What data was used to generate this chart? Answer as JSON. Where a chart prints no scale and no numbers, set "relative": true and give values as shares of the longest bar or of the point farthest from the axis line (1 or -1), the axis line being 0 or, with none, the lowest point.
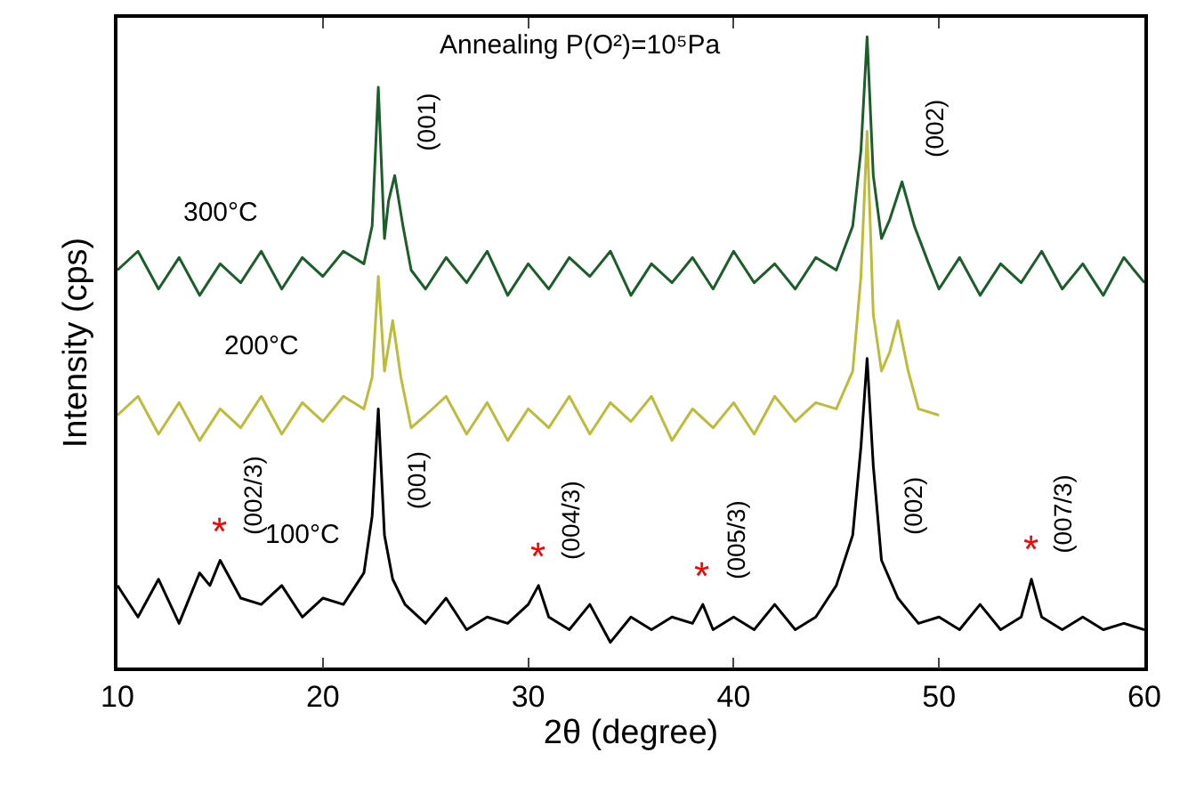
{
  "chart_data": {
    "type": "line",
    "relative": true,
    "title": "Annealing P(O²)=10⁵Pa",
    "xlabel": "2θ (degree)",
    "ylabel": "Intensity (cps)",
    "xlim": [
      10,
      60
    ],
    "xticks": [
      10,
      20,
      30,
      40,
      50,
      60
    ],
    "series": [
      {
        "name": "300°C",
        "color": "#1b5e2a",
        "x": [
          10,
          11,
          12,
          13,
          14,
          15,
          16,
          17,
          18,
          19,
          20,
          21,
          22,
          22.4,
          22.7,
          23.0,
          23.2,
          23.5,
          23.9,
          24.3,
          25,
          26,
          27,
          28,
          29,
          30,
          31,
          32,
          33,
          34,
          35,
          36,
          37,
          38,
          39,
          40,
          41,
          42,
          43,
          44,
          45,
          45.8,
          46.2,
          46.5,
          46.8,
          47.2,
          47.6,
          48.2,
          48.8,
          49.5,
          50,
          51,
          52,
          53,
          54,
          55,
          56,
          57,
          58,
          59,
          60
        ],
        "values": [
          0.63,
          0.66,
          0.6,
          0.65,
          0.59,
          0.64,
          0.61,
          0.66,
          0.6,
          0.65,
          0.62,
          0.66,
          0.64,
          0.7,
          0.92,
          0.68,
          0.74,
          0.78,
          0.7,
          0.63,
          0.6,
          0.65,
          0.61,
          0.66,
          0.59,
          0.64,
          0.6,
          0.65,
          0.62,
          0.66,
          0.59,
          0.64,
          0.61,
          0.65,
          0.6,
          0.66,
          0.61,
          0.64,
          0.6,
          0.65,
          0.63,
          0.7,
          0.82,
          1.0,
          0.78,
          0.68,
          0.71,
          0.77,
          0.7,
          0.64,
          0.6,
          0.65,
          0.59,
          0.64,
          0.61,
          0.66,
          0.6,
          0.64,
          0.59,
          0.65,
          0.61
        ]
      },
      {
        "name": "200°C",
        "color": "#bcbc3a",
        "x": [
          10,
          11,
          12,
          13,
          14,
          15,
          16,
          17,
          18,
          19,
          20,
          21,
          22,
          22.4,
          22.7,
          23.0,
          23.4,
          23.8,
          24.3,
          25,
          26,
          27,
          28,
          29,
          30,
          31,
          32,
          33,
          34,
          35,
          36,
          37,
          38,
          39,
          40,
          41,
          42,
          43,
          44,
          45,
          45.8,
          46.2,
          46.5,
          46.8,
          47.2,
          47.6,
          48.0,
          48.5,
          49,
          50
        ],
        "values": [
          0.4,
          0.43,
          0.37,
          0.42,
          0.36,
          0.41,
          0.38,
          0.43,
          0.37,
          0.42,
          0.39,
          0.43,
          0.41,
          0.46,
          0.62,
          0.47,
          0.55,
          0.46,
          0.38,
          0.4,
          0.43,
          0.37,
          0.42,
          0.36,
          0.41,
          0.38,
          0.43,
          0.37,
          0.42,
          0.39,
          0.43,
          0.36,
          0.41,
          0.38,
          0.42,
          0.37,
          0.43,
          0.39,
          0.42,
          0.41,
          0.47,
          0.62,
          0.85,
          0.56,
          0.47,
          0.5,
          0.55,
          0.47,
          0.41,
          0.4
        ]
      },
      {
        "name": "100°C",
        "color": "#000000",
        "x": [
          10,
          11,
          12,
          13,
          14,
          14.5,
          15,
          15.5,
          16,
          17,
          18,
          19,
          20,
          21,
          22,
          22.4,
          22.7,
          23,
          23.4,
          24,
          25,
          26,
          27,
          28,
          29,
          30,
          30.5,
          31,
          32,
          33,
          34,
          35,
          36,
          37,
          38,
          38.5,
          39,
          40,
          41,
          42,
          43,
          44,
          45,
          45.8,
          46.2,
          46.5,
          46.8,
          47.2,
          48,
          49,
          50,
          51,
          52,
          53,
          54,
          54.5,
          55,
          56,
          57,
          58,
          59,
          60
        ],
        "values": [
          0.13,
          0.08,
          0.14,
          0.07,
          0.15,
          0.13,
          0.17,
          0.14,
          0.11,
          0.1,
          0.13,
          0.08,
          0.11,
          0.1,
          0.15,
          0.24,
          0.41,
          0.21,
          0.14,
          0.1,
          0.07,
          0.11,
          0.06,
          0.08,
          0.07,
          0.1,
          0.13,
          0.08,
          0.06,
          0.1,
          0.04,
          0.08,
          0.06,
          0.08,
          0.07,
          0.1,
          0.06,
          0.08,
          0.06,
          0.1,
          0.06,
          0.08,
          0.13,
          0.21,
          0.35,
          0.49,
          0.32,
          0.17,
          0.11,
          0.07,
          0.08,
          0.06,
          0.1,
          0.06,
          0.08,
          0.14,
          0.08,
          0.06,
          0.08,
          0.06,
          0.07,
          0.06
        ]
      }
    ],
    "annotations": [
      {
        "text": "(001)",
        "x": 23.5,
        "y": 0.78
      },
      {
        "text": "(002)",
        "x": 48.2,
        "y": 0.77
      },
      {
        "text": "(002/3)",
        "x": 15,
        "y": 0.17
      },
      {
        "text": "(001)",
        "x": 23,
        "y": 0.21
      },
      {
        "text": "(004/3)",
        "x": 30.5,
        "y": 0.13
      },
      {
        "text": "(005/3)",
        "x": 38.5,
        "y": 0.1
      },
      {
        "text": "(002)",
        "x": 47.2,
        "y": 0.17
      },
      {
        "text": "(007/3)",
        "x": 54.5,
        "y": 0.14
      },
      {
        "text": "*",
        "x": 15,
        "y": 0.17
      },
      {
        "text": "*",
        "x": 30.5,
        "y": 0.13
      },
      {
        "text": "*",
        "x": 38.5,
        "y": 0.1
      },
      {
        "text": "*",
        "x": 54.5,
        "y": 0.14
      }
    ]
  }
}
